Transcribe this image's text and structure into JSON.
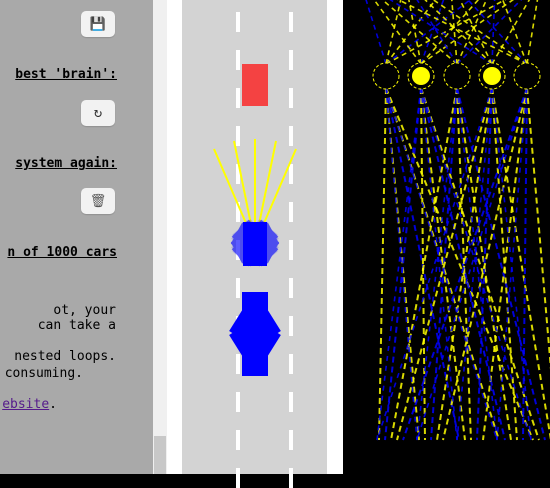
{
  "panel": {
    "heading_best_brain": "best 'brain':",
    "heading_system_again": " system again:",
    "heading_population": "n of 1000 cars",
    "para_lines": [
      "ot, your",
      " can take a",
      "",
      " nested loops.",
      "consuming."
    ],
    "link_text": "ebsite",
    "link_suffix": ".",
    "save_icon": "floppy-disk",
    "refresh_icon": "refresh",
    "trash_icon": "trash-can",
    "save_glyph": "💾",
    "refresh_glyph": "↻",
    "trash_glyph": "🗑"
  },
  "colors": {
    "panel_bg": "#a9a9a9",
    "road": "#d3d3d3",
    "lane_marking": "#ffffff",
    "traffic_car": "#f44242",
    "ai_car": "#0000ff",
    "sensor_ray": "#ffff00",
    "network_bg": "#000000",
    "node_active": "#ffff00",
    "link_positive": "#ffff00",
    "link_negative": "#0000ff",
    "link_text": "#551a8b"
  },
  "network": {
    "top_nodes_active": [
      false,
      true,
      false,
      true,
      false
    ]
  }
}
